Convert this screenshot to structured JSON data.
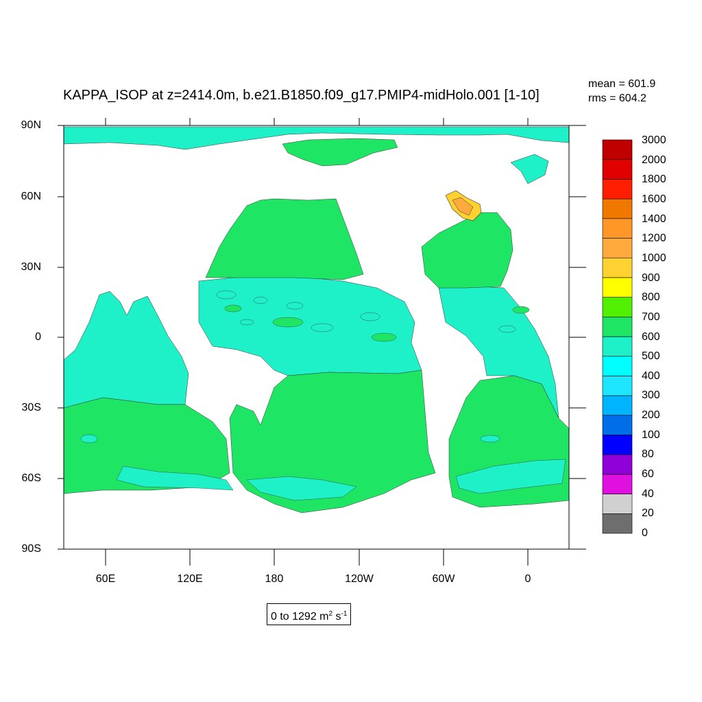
{
  "title": "KAPPA_ISOP at z=2414.0m, b.e21.B1850.f09_g17.PMIP4-midHolo.001 [1-10]",
  "stats": {
    "mean": "mean = 601.9",
    "rms": "rms = 604.2"
  },
  "units": {
    "range": "0 to 1292 m",
    "sup1": "2",
    "mid": " s",
    "sup2": "-1"
  },
  "chart_data": {
    "type": "heatmap",
    "title": "KAPPA_ISOP at z=2414.0m, b.e21.B1850.f09_g17.PMIP4-midHolo.001 [1-10]",
    "xlabel": "",
    "ylabel": "",
    "x_ticks": [
      "60E",
      "120E",
      "180",
      "120W",
      "60W",
      "0"
    ],
    "y_ticks": [
      "90N",
      "60N",
      "30N",
      "0",
      "30S",
      "60S",
      "90S"
    ],
    "ylim": [
      -90,
      90
    ],
    "levels": [
      "0",
      "20",
      "40",
      "60",
      "80",
      "100",
      "200",
      "300",
      "400",
      "500",
      "600",
      "700",
      "800",
      "900",
      "1000",
      "1200",
      "1400",
      "1600",
      "1800",
      "2000",
      "3000"
    ],
    "colors": [
      "#6e6e6e",
      "#d0d0d0",
      "#e010e0",
      "#9000d8",
      "#0000ff",
      "#006ee8",
      "#00b4ff",
      "#1ee6ff",
      "#00ffff",
      "#1ef0c8",
      "#1ee664",
      "#50f000",
      "#ffff00",
      "#ffd232",
      "#ffaa3c",
      "#ff9628",
      "#f07800",
      "#ff1e00",
      "#e10000",
      "#c00000"
    ],
    "mean": 601.9,
    "rms": 604.2
  }
}
